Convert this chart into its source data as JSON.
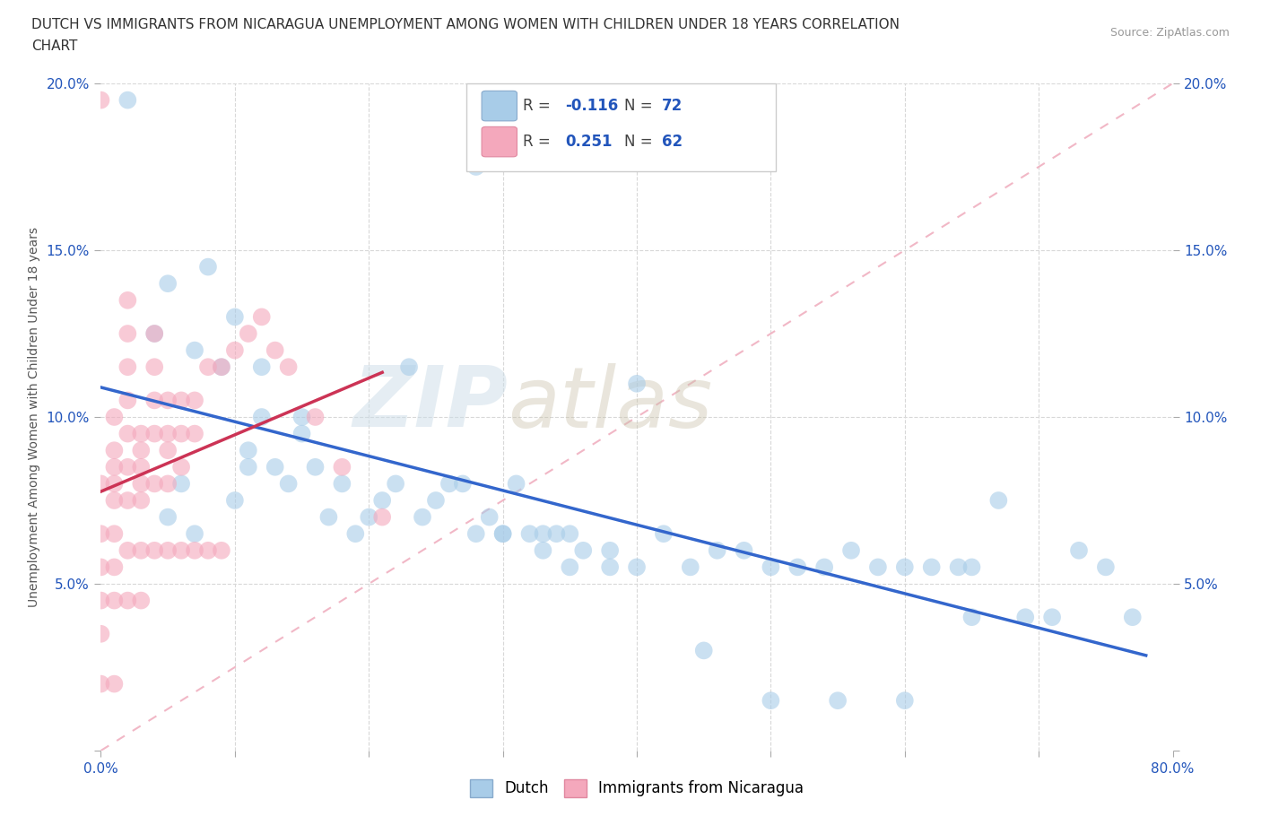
{
  "title_line1": "DUTCH VS IMMIGRANTS FROM NICARAGUA UNEMPLOYMENT AMONG WOMEN WITH CHILDREN UNDER 18 YEARS CORRELATION",
  "title_line2": "CHART",
  "source_text": "Source: ZipAtlas.com",
  "ylabel": "Unemployment Among Women with Children Under 18 years",
  "xlim": [
    0.0,
    0.8
  ],
  "ylim": [
    0.0,
    0.2
  ],
  "dutch_color": "#a8cce8",
  "nicaragua_color": "#f4a8bc",
  "dutch_R": -0.116,
  "dutch_N": 72,
  "nicaragua_R": 0.251,
  "nicaragua_N": 62,
  "legend_R_color": "#2255bb",
  "dutch_line_color": "#3366cc",
  "nicaragua_line_color": "#cc3355",
  "diagonal_color": "#f0b0c0",
  "background_color": "#ffffff",
  "tick_color": "#2255bb",
  "tick_fontsize": 11,
  "legend_fontsize": 12,
  "title_fontsize": 11,
  "dutch_scatter_x": [
    0.02,
    0.04,
    0.05,
    0.05,
    0.06,
    0.07,
    0.07,
    0.08,
    0.09,
    0.1,
    0.1,
    0.11,
    0.11,
    0.12,
    0.12,
    0.13,
    0.14,
    0.15,
    0.15,
    0.16,
    0.17,
    0.18,
    0.19,
    0.2,
    0.21,
    0.22,
    0.23,
    0.24,
    0.25,
    0.26,
    0.27,
    0.28,
    0.29,
    0.3,
    0.31,
    0.32,
    0.33,
    0.34,
    0.35,
    0.36,
    0.38,
    0.4,
    0.42,
    0.44,
    0.46,
    0.48,
    0.5,
    0.52,
    0.54,
    0.56,
    0.58,
    0.6,
    0.62,
    0.64,
    0.65,
    0.67,
    0.69,
    0.71,
    0.73,
    0.75,
    0.77,
    0.28,
    0.3,
    0.33,
    0.35,
    0.38,
    0.4,
    0.45,
    0.5,
    0.55,
    0.6,
    0.65
  ],
  "dutch_scatter_y": [
    0.195,
    0.125,
    0.14,
    0.07,
    0.08,
    0.12,
    0.065,
    0.145,
    0.115,
    0.13,
    0.075,
    0.09,
    0.085,
    0.115,
    0.1,
    0.085,
    0.08,
    0.1,
    0.095,
    0.085,
    0.07,
    0.08,
    0.065,
    0.07,
    0.075,
    0.08,
    0.115,
    0.07,
    0.075,
    0.08,
    0.08,
    0.065,
    0.07,
    0.065,
    0.08,
    0.065,
    0.065,
    0.065,
    0.065,
    0.06,
    0.06,
    0.11,
    0.065,
    0.055,
    0.06,
    0.06,
    0.055,
    0.055,
    0.055,
    0.06,
    0.055,
    0.055,
    0.055,
    0.055,
    0.055,
    0.075,
    0.04,
    0.04,
    0.06,
    0.055,
    0.04,
    0.175,
    0.065,
    0.06,
    0.055,
    0.055,
    0.055,
    0.03,
    0.015,
    0.015,
    0.015,
    0.04
  ],
  "nic_scatter_x": [
    0.0,
    0.0,
    0.0,
    0.0,
    0.0,
    0.0,
    0.0,
    0.01,
    0.01,
    0.01,
    0.01,
    0.01,
    0.01,
    0.01,
    0.01,
    0.01,
    0.02,
    0.02,
    0.02,
    0.02,
    0.02,
    0.02,
    0.02,
    0.02,
    0.02,
    0.03,
    0.03,
    0.03,
    0.03,
    0.03,
    0.03,
    0.03,
    0.04,
    0.04,
    0.04,
    0.04,
    0.04,
    0.04,
    0.05,
    0.05,
    0.05,
    0.05,
    0.05,
    0.06,
    0.06,
    0.06,
    0.06,
    0.07,
    0.07,
    0.07,
    0.08,
    0.08,
    0.09,
    0.09,
    0.1,
    0.11,
    0.12,
    0.13,
    0.14,
    0.16,
    0.18,
    0.21
  ],
  "nic_scatter_y": [
    0.195,
    0.08,
    0.065,
    0.055,
    0.045,
    0.035,
    0.02,
    0.1,
    0.09,
    0.085,
    0.08,
    0.075,
    0.065,
    0.055,
    0.045,
    0.02,
    0.135,
    0.125,
    0.115,
    0.105,
    0.095,
    0.085,
    0.075,
    0.06,
    0.045,
    0.095,
    0.09,
    0.085,
    0.08,
    0.075,
    0.06,
    0.045,
    0.125,
    0.115,
    0.105,
    0.095,
    0.08,
    0.06,
    0.105,
    0.095,
    0.09,
    0.08,
    0.06,
    0.105,
    0.095,
    0.085,
    0.06,
    0.105,
    0.095,
    0.06,
    0.115,
    0.06,
    0.115,
    0.06,
    0.12,
    0.125,
    0.13,
    0.12,
    0.115,
    0.1,
    0.085,
    0.07
  ]
}
